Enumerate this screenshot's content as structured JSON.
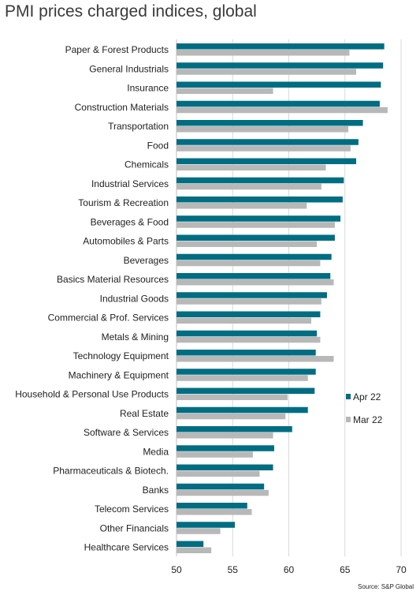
{
  "chart_data": {
    "type": "bar",
    "orientation": "horizontal",
    "title": "PMI prices charged indices, global",
    "source": "Source: S&P Global",
    "categories": [
      "Paper & Forest Products",
      "General Industrials",
      "Insurance",
      "Construction Materials",
      "Transportation",
      "Food",
      "Chemicals",
      "Industrial Services",
      "Tourism & Recreation",
      "Beverages & Food",
      "Automobiles & Parts",
      "Beverages",
      "Basics Material Resources",
      "Industrial Goods",
      "Commercial & Prof. Services",
      "Metals & Mining",
      "Technology Equipment",
      "Machinery & Equipment",
      "Household & Personal Use Products",
      "Real Estate",
      "Software & Services",
      "Media",
      "Pharmaceuticals & Biotech.",
      "Banks",
      "Telecom Services",
      "Other Financials",
      "Healthcare Services"
    ],
    "series": [
      {
        "name": "Apr 22",
        "color": "#006d82",
        "values": [
          68.5,
          68.4,
          68.2,
          68.1,
          66.6,
          66.2,
          66.0,
          64.9,
          64.8,
          64.6,
          64.1,
          63.8,
          63.7,
          63.4,
          62.8,
          62.5,
          62.4,
          62.4,
          62.3,
          61.7,
          60.3,
          58.7,
          58.6,
          57.8,
          56.3,
          55.2,
          52.4
        ]
      },
      {
        "name": "Mar 22",
        "color": "#b8b8b8",
        "values": [
          65.4,
          66.0,
          58.6,
          68.8,
          65.3,
          65.5,
          63.3,
          62.9,
          61.6,
          64.1,
          62.5,
          62.8,
          64.0,
          62.9,
          62.0,
          62.8,
          64.0,
          61.7,
          59.9,
          59.7,
          58.6,
          56.8,
          57.4,
          58.2,
          56.7,
          53.9,
          53.1
        ]
      }
    ],
    "xlim": [
      50,
      70
    ],
    "xticks": [
      "50",
      "55",
      "60",
      "65",
      "70"
    ],
    "grid": true,
    "legend_position": "right"
  }
}
